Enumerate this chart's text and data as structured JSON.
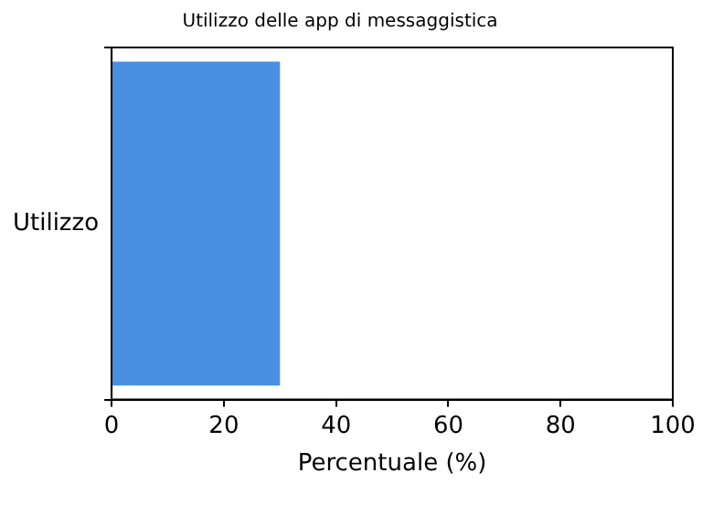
{
  "chart_data": {
    "type": "bar",
    "orientation": "horizontal",
    "title": "Utilizzo delle app di messaggistica",
    "xlabel": "Percentuale (%)",
    "categories": [
      "Utilizzo"
    ],
    "values": [
      30
    ],
    "color": "#4a90e2",
    "xlim": [
      0,
      100
    ],
    "xticks": [
      0,
      20,
      40,
      60,
      80,
      100
    ],
    "grid": false,
    "legend": false
  }
}
